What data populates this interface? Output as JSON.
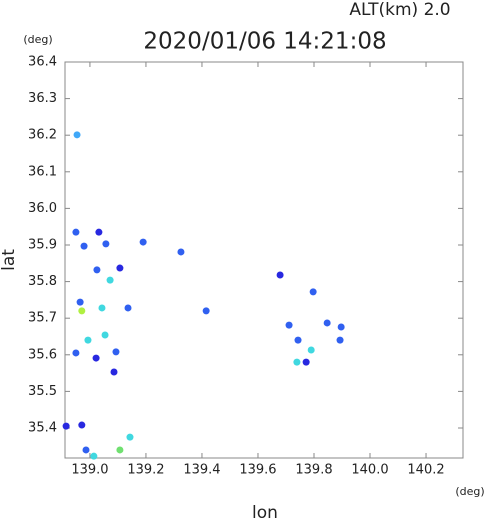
{
  "chart_data": {
    "type": "scatter",
    "title": "2020/01/06 14:21:08",
    "subtitle": "ALT(km) 2.0",
    "xlabel": "lon",
    "ylabel": "lat",
    "xunit": "(deg)",
    "yunit": "(deg)",
    "xlim": [
      138.911,
      140.332
    ],
    "ylim": [
      35.318,
      36.4
    ],
    "xticks": [
      {
        "value": 139.0,
        "label": "139.0"
      },
      {
        "value": 139.2,
        "label": "139.2"
      },
      {
        "value": 139.4,
        "label": "139.4"
      },
      {
        "value": 139.6,
        "label": "139.6"
      },
      {
        "value": 139.8,
        "label": "139.8"
      },
      {
        "value": 140.0,
        "label": "140.0"
      },
      {
        "value": 140.2,
        "label": "140.2"
      }
    ],
    "yticks": [
      35.4,
      35.5,
      35.6,
      35.7,
      35.8,
      35.9,
      {
        "value": 36.0,
        "label": "36.0"
      },
      36.1,
      36.2,
      36.3,
      36.4
    ],
    "x": [
      138.954,
      138.95,
      138.979,
      139.032,
      139.057,
      139.19,
      139.107,
      139.072,
      139.025,
      138.965,
      138.971,
      139.043,
      139.136,
      138.993,
      139.022,
      139.054,
      139.093,
      139.086,
      138.95,
      138.971,
      138.986,
      139.014,
      139.107,
      139.143,
      138.915,
      139.325,
      139.415,
      139.679,
      139.797,
      139.711,
      139.743,
      139.79,
      139.847,
      139.897,
      139.893,
      139.739,
      139.772
    ],
    "y": [
      36.201,
      35.935,
      35.897,
      35.935,
      35.903,
      35.908,
      35.837,
      35.804,
      35.832,
      35.744,
      35.72,
      35.728,
      35.728,
      35.64,
      35.591,
      35.654,
      35.608,
      35.553,
      35.605,
      35.408,
      35.34,
      35.323,
      35.34,
      35.375,
      35.405,
      35.881,
      35.72,
      35.818,
      35.772,
      35.681,
      35.64,
      35.613,
      35.687,
      35.676,
      35.64,
      35.58,
      35.58
    ],
    "colors": [
      "#40a8f8",
      "#3060f0",
      "#3060f0",
      "#2828e0",
      "#3060f0",
      "#3060f0",
      "#2828e0",
      "#40d8e0",
      "#3060f0",
      "#3060f0",
      "#b0f040",
      "#40d8e0",
      "#3060f0",
      "#40d8e0",
      "#2828e0",
      "#40d8e0",
      "#3060f0",
      "#2828e0",
      "#3060f0",
      "#2828e0",
      "#3060f0",
      "#40d8e0",
      "#70e070",
      "#40d8e0",
      "#2828e0",
      "#3060f0",
      "#3060f0",
      "#2828e0",
      "#3060f0",
      "#3060f0",
      "#3060f0",
      "#40d8e0",
      "#3060f0",
      "#3060f0",
      "#3060f0",
      "#40d8e0",
      "#2828e0"
    ]
  }
}
